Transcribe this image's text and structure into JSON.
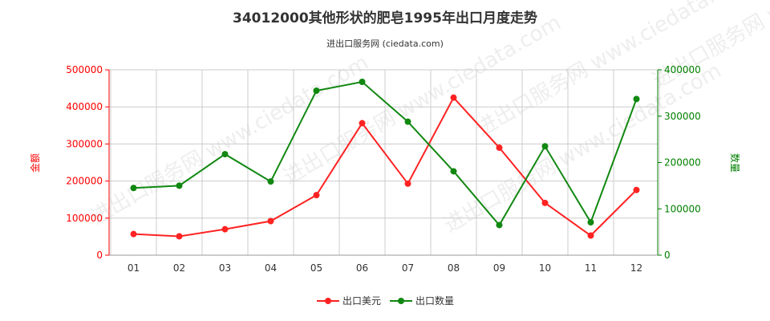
{
  "header": {
    "title": "34012000其他形状的肥皂1995年出口月度走势",
    "subtitle": "进出口服务网 (ciedata.com)"
  },
  "watermark": "进出口服务网 www.ciedata.com",
  "chart_data": {
    "type": "line",
    "categories": [
      "01",
      "02",
      "03",
      "04",
      "05",
      "06",
      "07",
      "08",
      "09",
      "10",
      "11",
      "12"
    ],
    "left_axis": {
      "label": "金额",
      "ylim": [
        0,
        500000
      ],
      "ticks": [
        "0",
        "100000",
        "200000",
        "300000",
        "400000",
        "500000"
      ],
      "color": "#ff0000"
    },
    "right_axis": {
      "label": "数量",
      "ylim": [
        0,
        400000
      ],
      "ticks": [
        "0",
        "100000",
        "200000",
        "300000",
        "400000"
      ],
      "color": "#008000"
    },
    "series": [
      {
        "name": "出口美元",
        "axis": "left",
        "color": "#ff2222",
        "values": [
          57000,
          51000,
          70000,
          92000,
          162000,
          356000,
          193000,
          425000,
          290000,
          141000,
          53000,
          176000
        ]
      },
      {
        "name": "出口数量",
        "axis": "right",
        "color": "#118811",
        "values": [
          145000,
          150000,
          218000,
          159000,
          355000,
          374000,
          288000,
          181000,
          65000,
          235000,
          71000,
          337000
        ]
      }
    ],
    "grid": true,
    "legend_position": "bottom-center"
  }
}
